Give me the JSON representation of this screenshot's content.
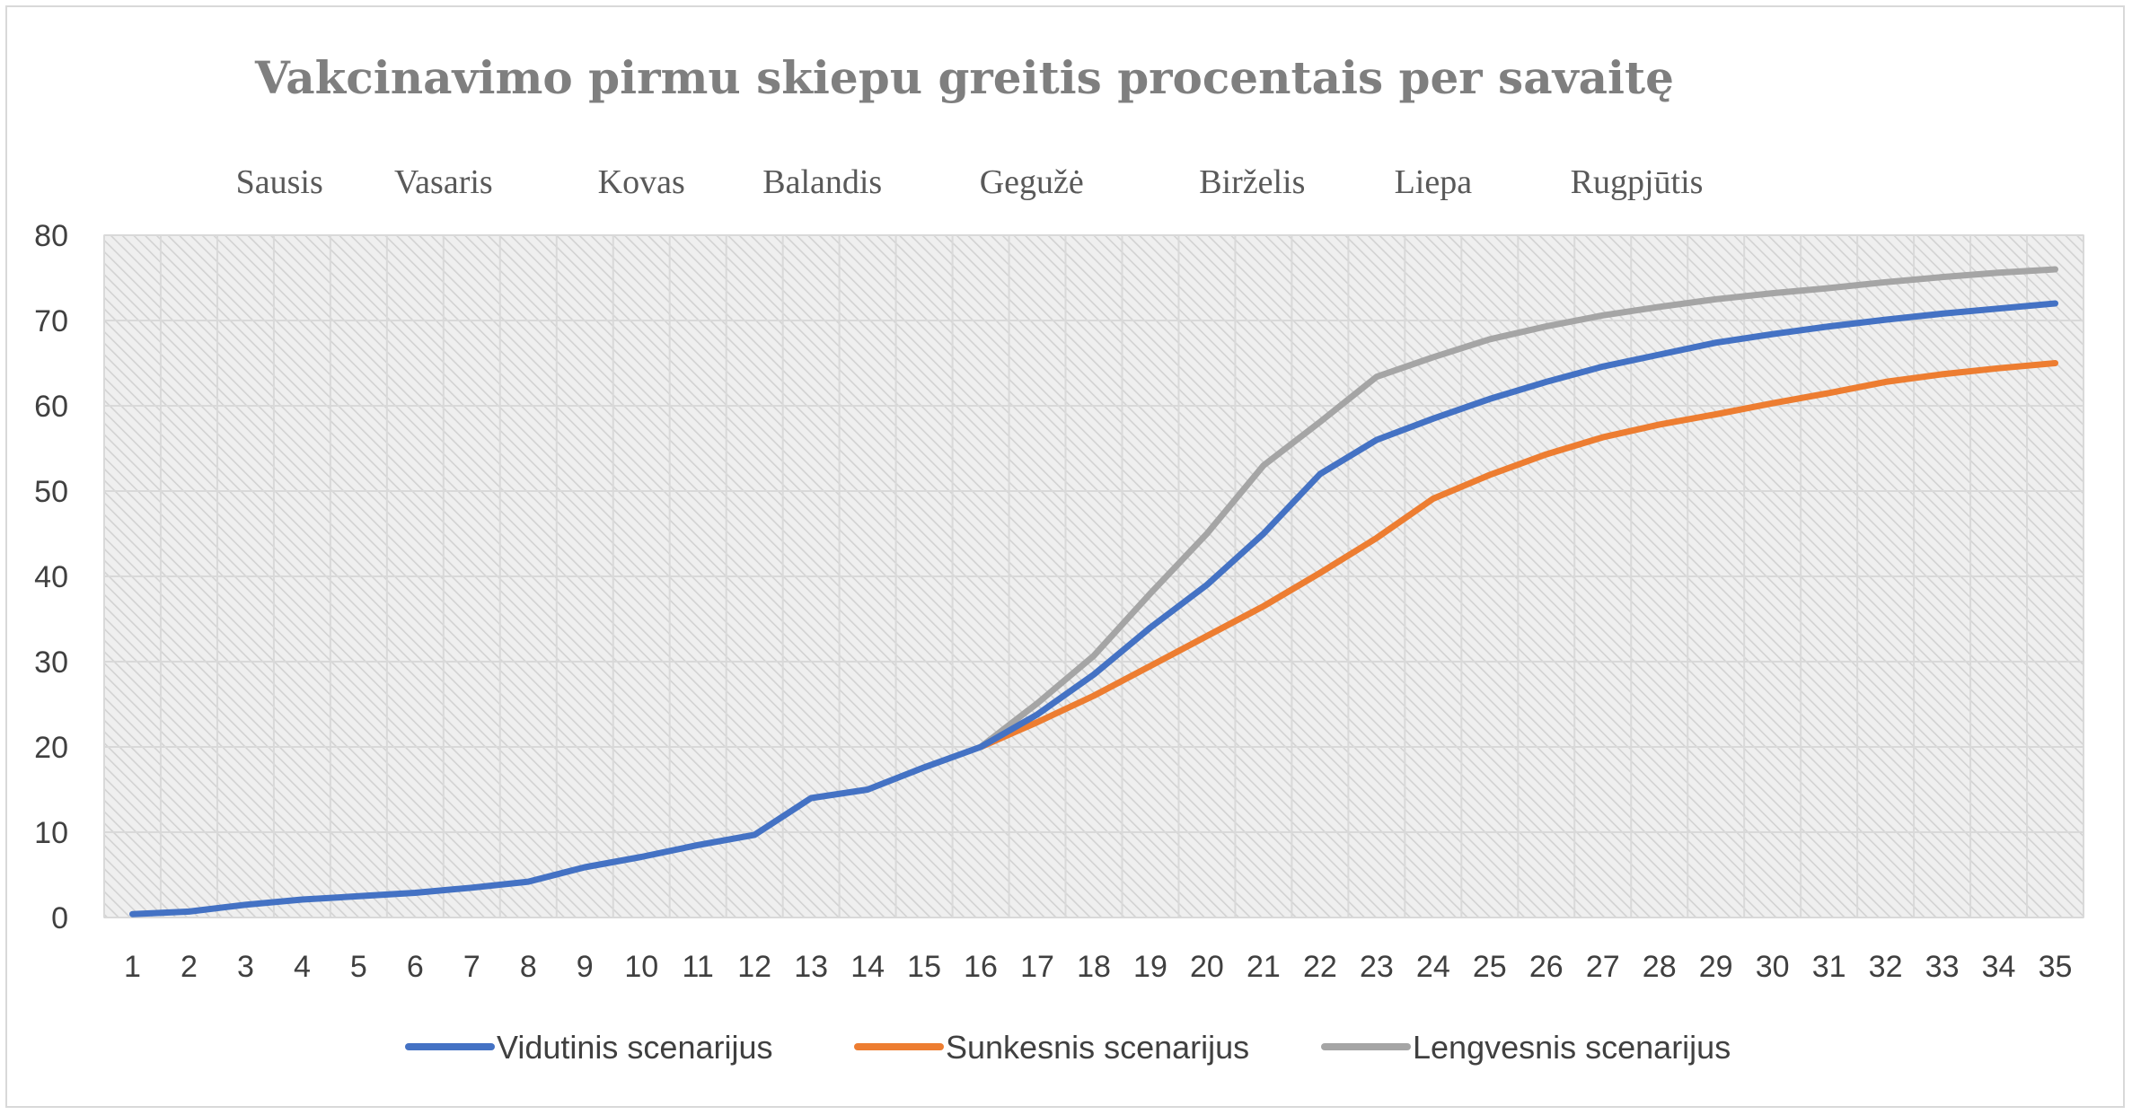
{
  "chart_data": {
    "type": "line",
    "title": "Vakcinavimo pirmu skiepu greitis procentais per savaitę",
    "month_labels": [
      {
        "label": "Sausis",
        "week": 3.6
      },
      {
        "label": "Vasaris",
        "week": 6.5
      },
      {
        "label": "Kovas",
        "week": 10.0
      },
      {
        "label": "Balandis",
        "week": 13.2
      },
      {
        "label": "Gegužė",
        "week": 16.9
      },
      {
        "label": "Birželis",
        "week": 20.8
      },
      {
        "label": "Liepa",
        "week": 24.0
      },
      {
        "label": "Rugpjūtis",
        "week": 27.6
      }
    ],
    "x": [
      1,
      2,
      3,
      4,
      5,
      6,
      7,
      8,
      9,
      10,
      11,
      12,
      13,
      14,
      15,
      16,
      17,
      18,
      19,
      20,
      21,
      22,
      23,
      24,
      25,
      26,
      27,
      28,
      29,
      30,
      31,
      32,
      33,
      34,
      35
    ],
    "ylim": [
      0,
      80
    ],
    "yticks": [
      0,
      10,
      20,
      30,
      40,
      50,
      60,
      70,
      80
    ],
    "grid": true,
    "legend_position": "bottom",
    "series": [
      {
        "name": "Vidutinis scenarijus",
        "color": "#4472c4",
        "values": [
          0.4,
          0.7,
          1.5,
          2.1,
          2.5,
          2.9,
          3.5,
          4.2,
          5.9,
          7.1,
          8.5,
          9.7,
          14.0,
          15.0,
          17.6,
          20.0,
          23.8,
          28.5,
          34.0,
          39.0,
          45.0,
          52.0,
          56.0,
          58.5,
          60.8,
          62.8,
          64.6,
          66.0,
          67.4,
          68.4,
          69.3,
          70.1,
          70.8,
          71.4,
          72.0
        ]
      },
      {
        "name": "Sunkesnis scenarijus",
        "color": "#ed7d31",
        "values": [
          null,
          null,
          null,
          null,
          null,
          null,
          null,
          null,
          null,
          null,
          null,
          null,
          null,
          null,
          null,
          20.0,
          22.9,
          26.0,
          29.5,
          33.0,
          36.5,
          40.4,
          44.5,
          49.1,
          51.9,
          54.3,
          56.3,
          57.8,
          59.0,
          60.3,
          61.5,
          62.8,
          63.7,
          64.4,
          65.0
        ]
      },
      {
        "name": "Lengvesnis scenarijus",
        "color": "#a5a5a5",
        "values": [
          null,
          null,
          null,
          null,
          null,
          null,
          null,
          null,
          null,
          null,
          null,
          null,
          null,
          null,
          null,
          20.0,
          25.1,
          30.7,
          38.0,
          45.0,
          53.0,
          58.1,
          63.4,
          65.7,
          67.8,
          69.3,
          70.6,
          71.6,
          72.5,
          73.2,
          73.8,
          74.5,
          75.1,
          75.6,
          76.0
        ]
      }
    ]
  }
}
